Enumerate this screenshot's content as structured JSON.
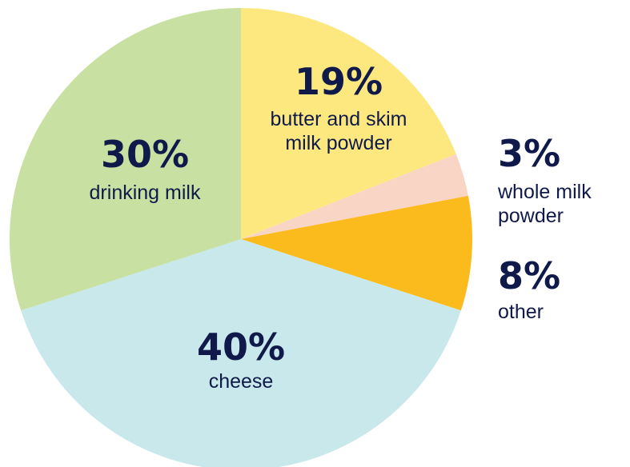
{
  "chart_data": {
    "type": "pie",
    "slices": [
      {
        "value": 19,
        "pct_label": "19%",
        "label_lines": [
          "butter and skim",
          "milk powder"
        ],
        "color": "#fde880"
      },
      {
        "value": 3,
        "pct_label": "3%",
        "label_lines": [
          "whole milk",
          "powder"
        ],
        "color": "#f9d5c5"
      },
      {
        "value": 8,
        "pct_label": "8%",
        "label_lines": [
          "other"
        ],
        "color": "#fbbb1c"
      },
      {
        "value": 40,
        "pct_label": "40%",
        "label_lines": [
          "cheese"
        ],
        "color": "#c9e8ec"
      },
      {
        "value": 30,
        "pct_label": "30%",
        "label_lines": [
          "drinking milk"
        ],
        "color": "#c8e0a1"
      }
    ]
  }
}
